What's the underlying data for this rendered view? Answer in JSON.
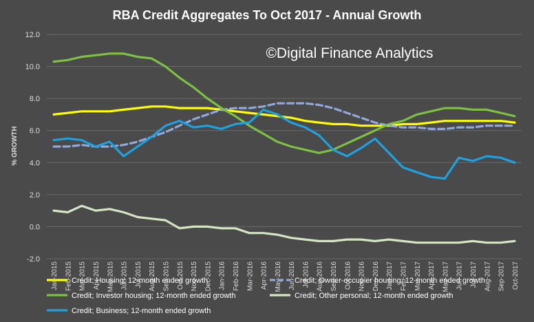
{
  "chart_data": {
    "type": "line",
    "title": "RBA Credit Aggregates To Oct 2017 - Annual Growth",
    "watermark": "©Digital Finance Analytics",
    "ylabel": "% GROWTH",
    "xlabel": "",
    "ylim": [
      -2.0,
      12.0
    ],
    "yticks": [
      "-2.0",
      "0.0",
      "2.0",
      "4.0",
      "6.0",
      "8.0",
      "10.0",
      "12.0"
    ],
    "grid": true,
    "legend_position": "bottom",
    "categories": [
      "Jan-2015",
      "Feb-2015",
      "Mar-2015",
      "Apr-2015",
      "May-2015",
      "Jun-2015",
      "Jul-2015",
      "Aug-2015",
      "Sep-2015",
      "Oct-2015",
      "Nov-2015",
      "Dec-2015",
      "Jan-2016",
      "Feb-2016",
      "Mar-2016",
      "Apr-2016",
      "May-2016",
      "Jun-2016",
      "Jul-2016",
      "Aug-2016",
      "Sep-2016",
      "Oct-2016",
      "Nov-2016",
      "Dec-2016",
      "Jan-2017",
      "Feb-2017",
      "Mar-2017",
      "Apr-2017",
      "May-2017",
      "Jun-2017",
      "Jul-2017",
      "Aug-2017",
      "Sep-2017",
      "Oct-2017"
    ],
    "series": [
      {
        "name": "Credit; Housing; 12-month ended growth",
        "color": "#ffff00",
        "dash": "solid",
        "values": [
          7.0,
          7.1,
          7.2,
          7.2,
          7.2,
          7.3,
          7.4,
          7.5,
          7.5,
          7.4,
          7.4,
          7.4,
          7.3,
          7.2,
          7.1,
          7.0,
          6.9,
          6.8,
          6.6,
          6.5,
          6.4,
          6.4,
          6.3,
          6.3,
          6.3,
          6.4,
          6.4,
          6.5,
          6.6,
          6.6,
          6.6,
          6.6,
          6.6,
          6.5
        ]
      },
      {
        "name": "Credit; Owner-occupier housing; 12-month ended growth",
        "color": "#8fa9db",
        "dash": "dashed",
        "values": [
          5.0,
          5.0,
          5.1,
          5.0,
          5.0,
          5.1,
          5.3,
          5.6,
          5.9,
          6.3,
          6.7,
          7.0,
          7.3,
          7.4,
          7.4,
          7.5,
          7.7,
          7.7,
          7.7,
          7.6,
          7.4,
          7.1,
          6.8,
          6.5,
          6.3,
          6.2,
          6.2,
          6.1,
          6.1,
          6.2,
          6.2,
          6.3,
          6.3,
          6.3
        ]
      },
      {
        "name": "Credit; Investor housing; 12-month ended growth",
        "color": "#7cc142",
        "dash": "solid",
        "values": [
          10.3,
          10.4,
          10.6,
          10.7,
          10.8,
          10.8,
          10.6,
          10.5,
          10.0,
          9.3,
          8.7,
          8.0,
          7.4,
          6.9,
          6.3,
          5.8,
          5.3,
          5.0,
          4.8,
          4.6,
          4.8,
          5.2,
          5.6,
          6.0,
          6.4,
          6.6,
          7.0,
          7.2,
          7.4,
          7.4,
          7.3,
          7.3,
          7.1,
          6.9
        ]
      },
      {
        "name": "Credit; Other personal; 12-month ended growth",
        "color": "#d4e6c1",
        "dash": "solid",
        "values": [
          1.0,
          0.9,
          1.3,
          1.0,
          1.1,
          0.9,
          0.6,
          0.5,
          0.4,
          -0.1,
          0.0,
          0.0,
          -0.1,
          -0.1,
          -0.4,
          -0.4,
          -0.5,
          -0.7,
          -0.8,
          -0.9,
          -0.9,
          -0.8,
          -0.8,
          -0.9,
          -0.8,
          -0.9,
          -1.0,
          -1.0,
          -1.0,
          -1.0,
          -0.9,
          -1.0,
          -1.0,
          -0.9
        ]
      },
      {
        "name": "Credit; Business; 12-month ended growth",
        "color": "#1fa1e0",
        "dash": "solid",
        "values": [
          5.4,
          5.5,
          5.4,
          5.0,
          5.3,
          4.4,
          5.0,
          5.6,
          6.3,
          6.6,
          6.2,
          6.3,
          6.1,
          6.4,
          6.5,
          7.3,
          7.0,
          6.5,
          6.2,
          5.7,
          4.8,
          4.4,
          4.9,
          5.5,
          4.6,
          3.7,
          3.4,
          3.1,
          3.0,
          4.3,
          4.1,
          4.4,
          4.3,
          4.0
        ]
      }
    ]
  }
}
